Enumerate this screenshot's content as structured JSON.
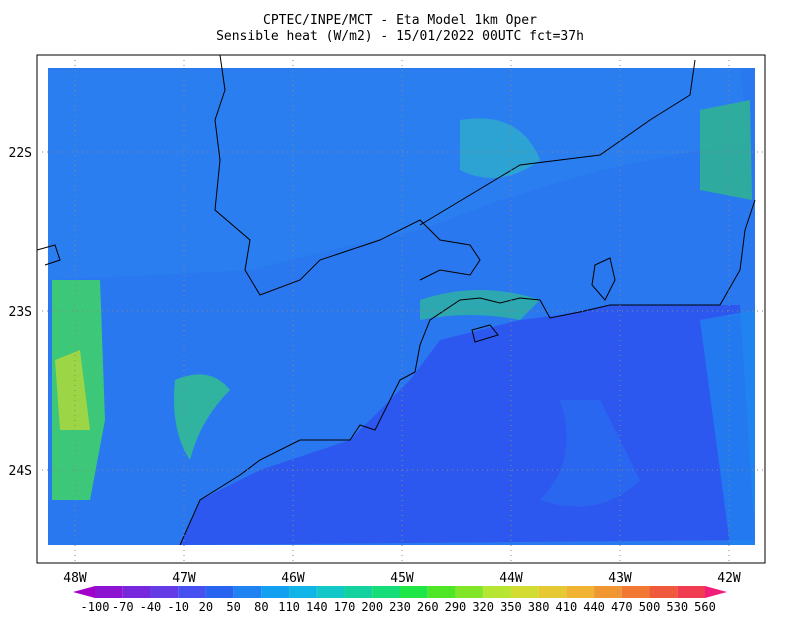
{
  "header": {
    "title": "CPTEC/INPE/MCT -  Eta Model 1km Oper",
    "subtitle": "Sensible heat (W/m2) - 15/01/2022 00UTC fct=37h"
  },
  "map": {
    "lon_labels": [
      "48W",
      "47W",
      "46W",
      "45W",
      "44W",
      "43W",
      "42W"
    ],
    "lat_labels": [
      "22S",
      "23S",
      "24S"
    ]
  },
  "colorbar": {
    "levels": [
      -100,
      -70,
      -40,
      -10,
      20,
      50,
      80,
      110,
      140,
      170,
      200,
      230,
      260,
      290,
      320,
      350,
      380,
      410,
      440,
      470,
      500,
      530,
      560
    ],
    "colors": [
      "#a000c8",
      "#8c14d2",
      "#7828dc",
      "#643ce6",
      "#4650f0",
      "#2864f0",
      "#1e82f0",
      "#14a0f0",
      "#10b4e6",
      "#14c8c8",
      "#14d2a0",
      "#14dc78",
      "#1ee646",
      "#50e628",
      "#82e628",
      "#b4e632",
      "#d2dc32",
      "#e6c832",
      "#f0b432",
      "#f09632",
      "#f07832",
      "#f05a3c",
      "#f03c50",
      "#f01e78"
    ]
  }
}
